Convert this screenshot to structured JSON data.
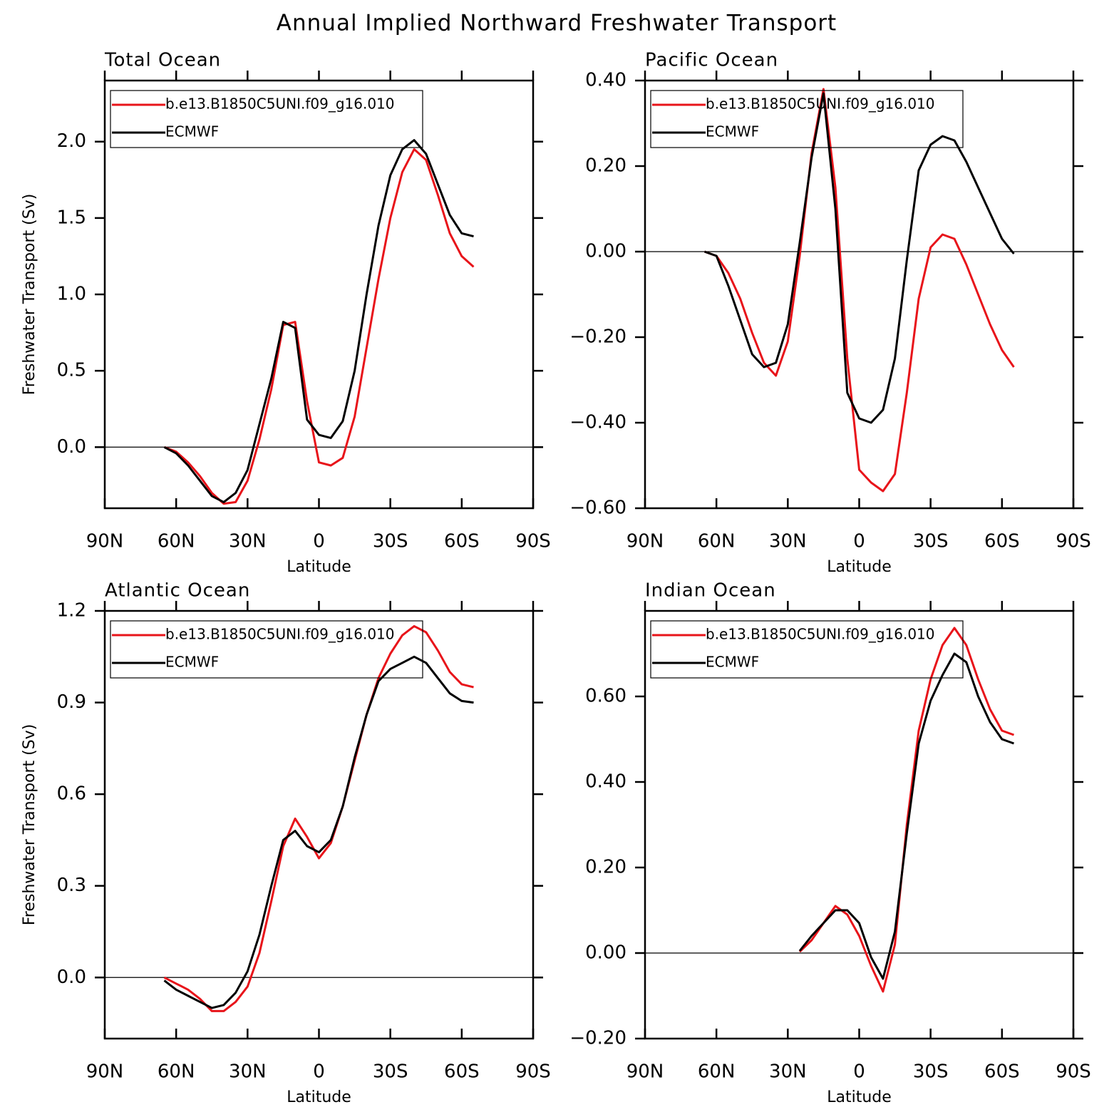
{
  "title": "Annual Implied Northward Freshwater Transport",
  "chart_data": [
    {
      "type": "line",
      "title": "Total Ocean",
      "xlabel": "Latitude",
      "ylabel": "Freshwater Transport (Sv)",
      "legend": "upper left",
      "x": [
        65,
        60,
        55,
        50,
        45,
        40,
        35,
        30,
        25,
        20,
        15,
        10,
        5,
        0,
        -5,
        -10,
        -15,
        -20,
        -25,
        -30,
        -35,
        -40,
        -45,
        -50,
        -55,
        -60,
        -65
      ],
      "xlim": [
        90,
        -90
      ],
      "xticks": [
        {
          "value": 90,
          "label": "90N"
        },
        {
          "value": 60,
          "label": "60N"
        },
        {
          "value": 30,
          "label": "30N"
        },
        0,
        {
          "value": -30,
          "label": "30S"
        },
        {
          "value": -60,
          "label": "60S"
        },
        {
          "value": -90,
          "label": "90S"
        }
      ],
      "ylim": [
        -0.4,
        2.4
      ],
      "yticks": [
        {
          "value": 0,
          "label": "0.0"
        },
        0.5,
        {
          "value": 1,
          "label": "1.0"
        },
        1.5,
        {
          "value": 2,
          "label": "2.0"
        }
      ],
      "series": [
        {
          "name": "b.e13.B1850C5UNI.f09_g16.010",
          "color": "#e8141a",
          "values": [
            0,
            -0.03,
            -0.1,
            -0.19,
            -0.3,
            -0.37,
            -0.36,
            -0.22,
            0.05,
            0.38,
            0.8,
            0.82,
            0.3,
            -0.1,
            -0.12,
            -0.07,
            0.2,
            0.65,
            1.1,
            1.5,
            1.8,
            1.95,
            1.88,
            1.65,
            1.4,
            1.25,
            1.18
          ]
        },
        {
          "name": "ECMWF",
          "color": "#000000",
          "values": [
            0,
            -0.04,
            -0.12,
            -0.22,
            -0.32,
            -0.36,
            -0.3,
            -0.15,
            0.15,
            0.45,
            0.82,
            0.78,
            0.18,
            0.08,
            0.06,
            0.17,
            0.5,
            1.0,
            1.45,
            1.78,
            1.95,
            2.01,
            1.92,
            1.72,
            1.52,
            1.4,
            1.38
          ]
        }
      ]
    },
    {
      "type": "line",
      "title": "Pacific Ocean",
      "xlabel": "Latitude",
      "legend": "upper left",
      "x": [
        65,
        60,
        55,
        50,
        45,
        40,
        35,
        30,
        25,
        20,
        15,
        10,
        5,
        0,
        -5,
        -10,
        -15,
        -20,
        -25,
        -30,
        -35,
        -40,
        -45,
        -50,
        -55,
        -60,
        -65
      ],
      "xlim": [
        90,
        -90
      ],
      "xticks": [
        {
          "value": 90,
          "label": "90N"
        },
        {
          "value": 60,
          "label": "60N"
        },
        {
          "value": 30,
          "label": "30N"
        },
        0,
        {
          "value": -30,
          "label": "30S"
        },
        {
          "value": -60,
          "label": "60S"
        },
        {
          "value": -90,
          "label": "90S"
        }
      ],
      "ylim": [
        -0.6,
        0.4
      ],
      "yticks": [
        {
          "value": -0.6,
          "label": "−0.60"
        },
        {
          "value": -0.4,
          "label": "−0.40"
        },
        {
          "value": -0.2,
          "label": "−0.20"
        },
        {
          "value": 0,
          "label": "0.00"
        },
        {
          "value": 0.2,
          "label": "0.20"
        },
        {
          "value": 0.4,
          "label": "0.40"
        }
      ],
      "series": [
        {
          "name": "b.e13.B1850C5UNI.f09_g16.010",
          "color": "#e8141a",
          "values": [
            0,
            -0.01,
            -0.05,
            -0.11,
            -0.19,
            -0.26,
            -0.29,
            -0.21,
            -0.01,
            0.23,
            0.38,
            0.15,
            -0.25,
            -0.51,
            -0.54,
            -0.56,
            -0.52,
            -0.33,
            -0.11,
            0.01,
            0.04,
            0.03,
            -0.03,
            -0.1,
            -0.17,
            -0.23,
            -0.27
          ]
        },
        {
          "name": "ECMWF",
          "color": "#000000",
          "values": [
            0,
            -0.01,
            -0.08,
            -0.16,
            -0.24,
            -0.27,
            -0.26,
            -0.17,
            0.02,
            0.22,
            0.37,
            0.1,
            -0.33,
            -0.39,
            -0.4,
            -0.37,
            -0.25,
            -0.02,
            0.19,
            0.25,
            0.27,
            0.26,
            0.21,
            0.15,
            0.09,
            0.03,
            -0.005
          ]
        }
      ]
    },
    {
      "type": "line",
      "title": "Atlantic Ocean",
      "xlabel": "Latitude",
      "ylabel": "Freshwater Transport (Sv)",
      "legend": "upper left",
      "x": [
        65,
        60,
        55,
        50,
        45,
        40,
        35,
        30,
        25,
        20,
        15,
        10,
        5,
        0,
        -5,
        -10,
        -15,
        -20,
        -25,
        -30,
        -35,
        -40,
        -45,
        -50,
        -55,
        -60,
        -65
      ],
      "xlim": [
        90,
        -90
      ],
      "xticks": [
        {
          "value": 90,
          "label": "90N"
        },
        {
          "value": 60,
          "label": "60N"
        },
        {
          "value": 30,
          "label": "30N"
        },
        0,
        {
          "value": -30,
          "label": "30S"
        },
        {
          "value": -60,
          "label": "60S"
        },
        {
          "value": -90,
          "label": "90S"
        }
      ],
      "ylim": [
        -0.2,
        1.2
      ],
      "yticks": [
        {
          "value": 0,
          "label": "0.0"
        },
        0.3,
        0.6,
        0.9,
        1.2
      ],
      "series": [
        {
          "name": "b.e13.B1850C5UNI.f09_g16.010",
          "color": "#e8141a",
          "values": [
            0,
            -0.02,
            -0.04,
            -0.07,
            -0.11,
            -0.11,
            -0.08,
            -0.03,
            0.08,
            0.25,
            0.43,
            0.52,
            0.46,
            0.39,
            0.44,
            0.56,
            0.71,
            0.86,
            0.98,
            1.06,
            1.12,
            1.15,
            1.13,
            1.07,
            1.0,
            0.96,
            0.95
          ]
        },
        {
          "name": "ECMWF",
          "color": "#000000",
          "values": [
            -0.01,
            -0.04,
            -0.06,
            -0.08,
            -0.1,
            -0.09,
            -0.05,
            0.02,
            0.14,
            0.3,
            0.45,
            0.48,
            0.43,
            0.41,
            0.45,
            0.56,
            0.72,
            0.86,
            0.97,
            1.01,
            1.03,
            1.05,
            1.03,
            0.98,
            0.93,
            0.905,
            0.9
          ]
        }
      ]
    },
    {
      "type": "line",
      "title": "Indian Ocean",
      "xlabel": "Latitude",
      "legend": "upper left",
      "x": [
        65,
        60,
        55,
        50,
        45,
        40,
        35,
        30,
        25,
        20,
        15,
        10,
        5,
        0,
        -5,
        -10,
        -15,
        -20,
        -25,
        -30,
        -35,
        -40,
        -45,
        -50,
        -55,
        -60,
        -65
      ],
      "xlim": [
        90,
        -90
      ],
      "xticks": [
        {
          "value": 90,
          "label": "90N"
        },
        {
          "value": 60,
          "label": "60N"
        },
        {
          "value": 30,
          "label": "30N"
        },
        0,
        {
          "value": -30,
          "label": "30S"
        },
        {
          "value": -60,
          "label": "60S"
        },
        {
          "value": -90,
          "label": "90S"
        }
      ],
      "ylim": [
        -0.2,
        0.8
      ],
      "yticks": [
        {
          "value": -0.2,
          "label": "−0.20"
        },
        {
          "value": 0,
          "label": "0.00"
        },
        {
          "value": 0.2,
          "label": "0.20"
        },
        {
          "value": 0.4,
          "label": "0.40"
        },
        {
          "value": 0.6,
          "label": "0.60"
        }
      ],
      "series": [
        {
          "name": "b.e13.B1850C5UNI.f09_g16.010",
          "color": "#e8141a",
          "values": [
            null,
            null,
            null,
            null,
            null,
            null,
            null,
            null,
            0.003,
            0.03,
            0.07,
            0.11,
            0.09,
            0.04,
            -0.03,
            -0.09,
            0.02,
            0.3,
            0.52,
            0.64,
            0.72,
            0.76,
            0.72,
            0.64,
            0.57,
            0.52,
            0.51
          ]
        },
        {
          "name": "ECMWF",
          "color": "#000000",
          "values": [
            null,
            null,
            null,
            null,
            null,
            null,
            null,
            null,
            0.005,
            0.04,
            0.07,
            0.1,
            0.1,
            0.07,
            -0.01,
            -0.06,
            0.05,
            0.28,
            0.49,
            0.59,
            0.65,
            0.7,
            0.68,
            0.6,
            0.54,
            0.5,
            0.49
          ]
        }
      ]
    }
  ]
}
